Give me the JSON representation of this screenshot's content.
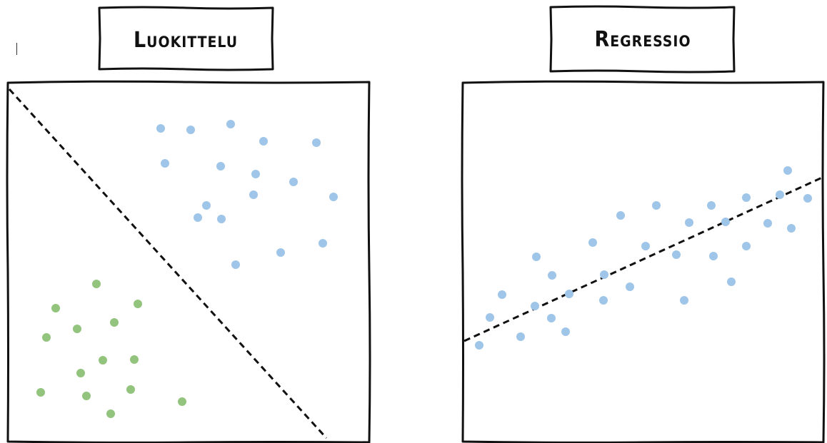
{
  "panels": [
    {
      "title": "Luokittelu",
      "kind": "classification",
      "boundary_style": "dashed"
    },
    {
      "title": "Regressio",
      "kind": "regression",
      "fit_line_style": "dashed"
    }
  ],
  "colors": {
    "frame": "#111111",
    "class_a": "#9fc5e8",
    "class_b": "#93c47d",
    "line": "#111111",
    "background": "#ffffff"
  }
}
